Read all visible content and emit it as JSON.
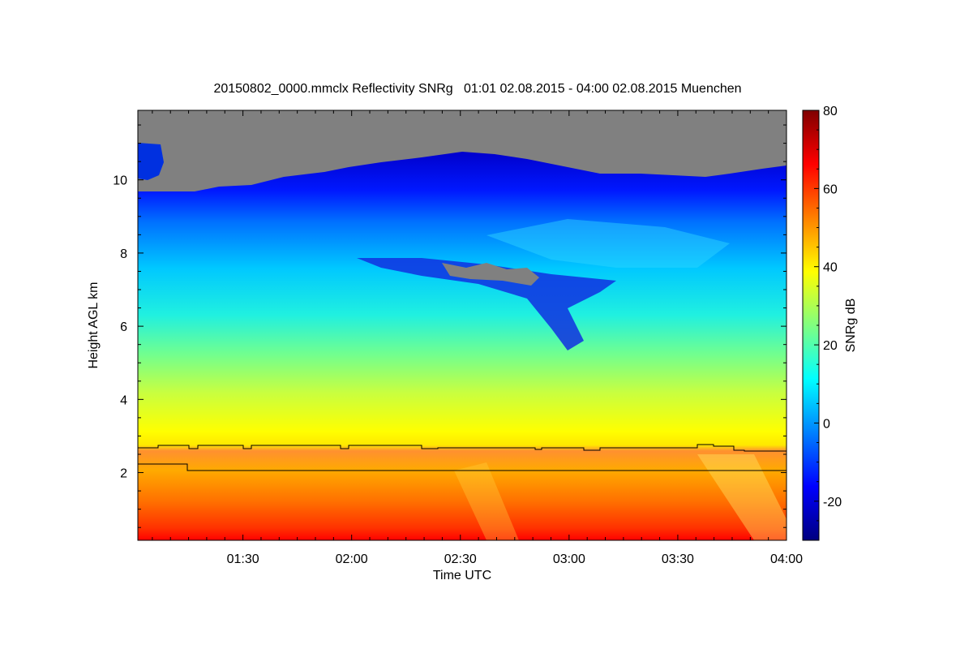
{
  "chart_data": {
    "type": "heatmap",
    "title": "20150802_0000.mmclx Reflectivity SNRg   01:01 02.08.2015 - 04:00 02.08.2015 Muenchen",
    "xlabel": "Time UTC",
    "ylabel": "Height AGL km",
    "colorbar_label": "SNRg dB",
    "x_range": [
      "01:01",
      "04:00"
    ],
    "x_ticks": [
      "01:30",
      "02:00",
      "02:30",
      "03:00",
      "03:30",
      "04:00"
    ],
    "y_range": [
      0.15,
      11.9
    ],
    "y_ticks": [
      2,
      4,
      6,
      8,
      10
    ],
    "color_range": [
      -30,
      80
    ],
    "colorbar_ticks": [
      -20,
      0,
      20,
      40,
      60,
      80
    ],
    "colormap": [
      "#00007f",
      "#0000ff",
      "#0080ff",
      "#00ffff",
      "#80ff80",
      "#ffff00",
      "#ff8000",
      "#ff0000",
      "#7f0000"
    ],
    "no_signal_color": "#808080",
    "features": [
      {
        "description": "melting layer / rain (strong return)",
        "height_km": [
          0.15,
          2.9
        ],
        "snr_db": [
          45,
          75
        ]
      },
      {
        "description": "ice cloud",
        "height_km": [
          2.9,
          10.5
        ],
        "snr_db": [
          -15,
          40
        ]
      },
      {
        "description": "cloud top",
        "height_km": 10.4
      }
    ],
    "lines": [
      {
        "name": "upper",
        "height_km": 2.72
      },
      {
        "name": "lower",
        "height_km": 2.27,
        "after_step_km": 2.12,
        "step_time": "01:15"
      }
    ]
  }
}
